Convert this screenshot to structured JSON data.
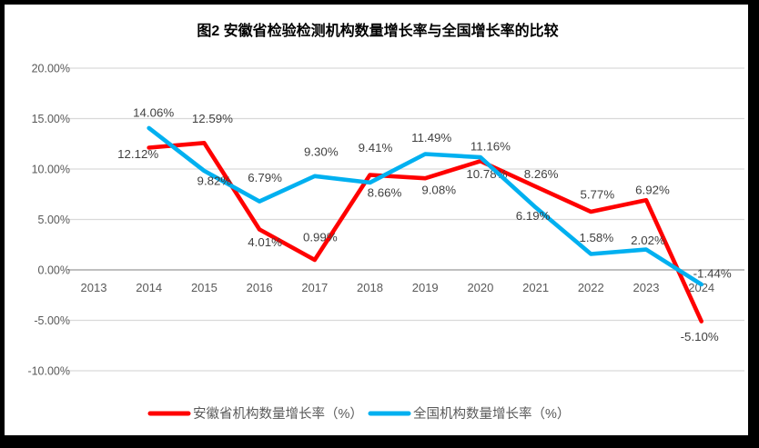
{
  "window": {
    "frame_color": "#000000",
    "panel_color": "#FFFFFF"
  },
  "chart_data": {
    "type": "line",
    "title": "图2 安徽省检验检测机构数量增长率与全国增长率的比较",
    "categories": [
      "2013",
      "2014",
      "2015",
      "2016",
      "2017",
      "2018",
      "2019",
      "2020",
      "2021",
      "2022",
      "2023",
      "2024"
    ],
    "series": [
      {
        "id": "anhui",
        "name": "安徽省机构数量增长率（%）",
        "color": "#FF0000",
        "values": [
          null,
          12.12,
          12.59,
          4.01,
          0.99,
          9.41,
          9.08,
          10.78,
          8.26,
          5.77,
          6.92,
          -5.1
        ],
        "labels": [
          null,
          "12.12%",
          "12.59%",
          "4.01%",
          "0.99%",
          "9.41%",
          "9.08%",
          "10.78%",
          "8.26%",
          "5.77%",
          "6.92%",
          "-5.10%"
        ],
        "label_offsets": [
          null,
          [
            -12,
            7
          ],
          [
            9,
            -27
          ],
          [
            6,
            14
          ],
          [
            6,
            -25
          ],
          [
            6,
            -30
          ],
          [
            15,
            13
          ],
          [
            7,
            14
          ],
          [
            6,
            -14
          ],
          [
            7,
            -19
          ],
          [
            7,
            -11
          ],
          [
            -2,
            17
          ]
        ]
      },
      {
        "id": "national",
        "name": "全国机构数量增长率（%）",
        "color": "#00B0F0",
        "values": [
          null,
          14.06,
          9.82,
          6.79,
          9.3,
          8.66,
          11.49,
          11.16,
          6.19,
          1.58,
          2.02,
          -1.44
        ],
        "labels": [
          null,
          "14.06%",
          "9.82%",
          "6.79%",
          "9.30%",
          "8.66%",
          "11.49%",
          "11.16%",
          "6.19%",
          "1.58%",
          "2.02%",
          "-1.44%"
        ],
        "label_offsets": [
          null,
          [
            5,
            -17
          ],
          [
            11,
            11
          ],
          [
            6,
            -26
          ],
          [
            7,
            -27
          ],
          [
            16,
            11
          ],
          [
            7,
            -18
          ],
          [
            11,
            -12
          ],
          [
            -3,
            9
          ],
          [
            6,
            -18
          ],
          [
            2,
            -10
          ],
          [
            12,
            -12
          ]
        ]
      }
    ],
    "y_ticks": [
      "20.00%",
      "15.00%",
      "10.00%",
      "5.00%",
      "0.00%",
      "-5.00%",
      "-10.00%"
    ],
    "y_tick_values": [
      20,
      15,
      10,
      5,
      0,
      -5,
      -10
    ],
    "ylim": [
      -10,
      20
    ],
    "grid": true,
    "legend_position": "bottom",
    "colors": {
      "gridline": "#D9D9D9",
      "axis_line": "#BFBFBF",
      "tick_label": "#595959",
      "data_label": "#404040",
      "title": "#000000"
    }
  }
}
